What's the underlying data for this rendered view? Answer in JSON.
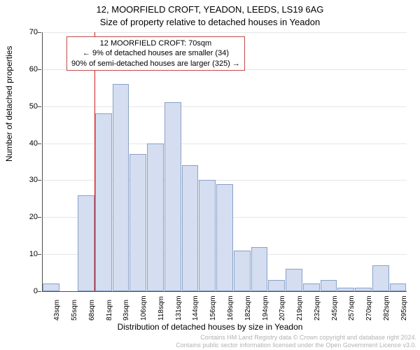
{
  "title": "12, MOORFIELD CROFT, YEADON, LEEDS, LS19 6AG",
  "subtitle": "Size of property relative to detached houses in Yeadon",
  "ylabel": "Number of detached properties",
  "xlabel": "Distribution of detached houses by size in Yeadon",
  "chart": {
    "type": "histogram",
    "ylim": [
      0,
      70
    ],
    "ytick_step": 10,
    "background_color": "#ffffff",
    "grid_color": "#e6e6e6",
    "axis_color": "#4d4d4d",
    "bar_fill": "#d4def0",
    "bar_stroke": "#8aa0c8",
    "marker_line_color": "#cc2020",
    "marker_x_index_between": [
      2,
      3
    ],
    "font_label": 12,
    "font_tick": 11,
    "categories": [
      "43sqm",
      "55sqm",
      "68sqm",
      "81sqm",
      "93sqm",
      "106sqm",
      "118sqm",
      "131sqm",
      "144sqm",
      "156sqm",
      "169sqm",
      "182sqm",
      "194sqm",
      "207sqm",
      "219sqm",
      "232sqm",
      "245sqm",
      "257sqm",
      "270sqm",
      "282sqm",
      "295sqm"
    ],
    "values": [
      2,
      0,
      26,
      48,
      56,
      37,
      40,
      51,
      34,
      30,
      29,
      11,
      12,
      3,
      6,
      2,
      3,
      1,
      1,
      7,
      2
    ]
  },
  "annotation": {
    "line1": "12 MOORFIELD CROFT: 70sqm",
    "line2": "← 9% of detached houses are smaller (34)",
    "line3": "90% of semi-detached houses are larger (325) →",
    "border_color": "#c04848"
  },
  "footer": {
    "line1": "Contains HM Land Registry data © Crown copyright and database right 2024.",
    "line2": "Contains public sector information licensed under the Open Government Licence v3.0.",
    "color": "#b3b3b3"
  }
}
